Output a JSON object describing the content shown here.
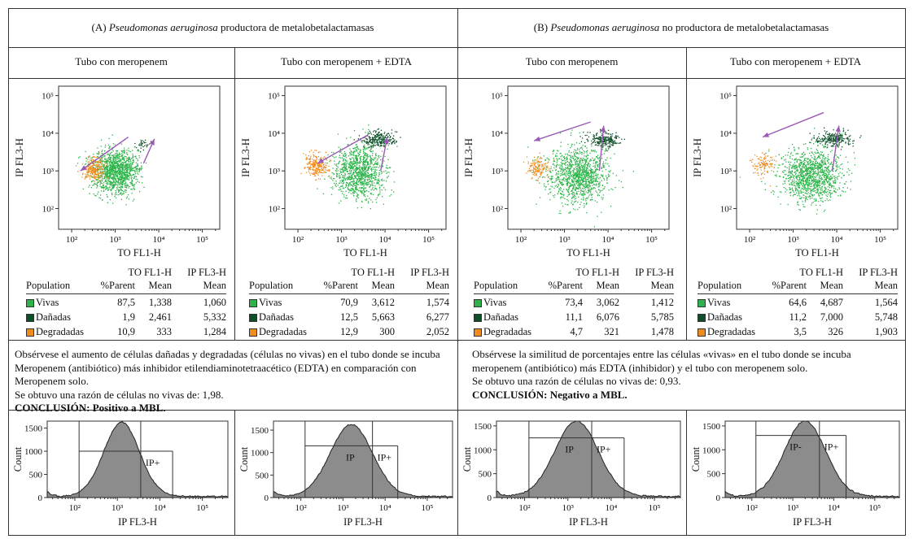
{
  "panels": [
    {
      "header_letter": "(A) ",
      "header_species": "Pseudomonas aeruginosa",
      "header_rest": " productora de metalobetalactamasas",
      "subheaders": [
        "Tubo con meropenem",
        "Tubo con meropenem + EDTA"
      ],
      "observation": [
        "Obsérvese el aumento de células dañadas y degradadas (células no vivas) en el tubo donde se incuba",
        "Meropenem (antibiótico) más inhibidor etilendiaminotetraacético (EDTA) en comparación con",
        "Meropenem solo.",
        "Se obtuvo una razón de células no vivas de: 1,98."
      ],
      "conclusion": "CONCLUSIÓN: Positivo a MBL."
    },
    {
      "header_letter": "(B) ",
      "header_species": "Pseudomonas aeruginosa",
      "header_rest": " no productora de metalobetalactamasas",
      "subheaders": [
        "Tubo con meropenem",
        "Tubo con meropenem + EDTA"
      ],
      "observation": [
        "Obsérvese la similitud de porcentajes entre las células «vivas» en el tubo donde se incuba",
        "meropenem (antibiótico) más EDTA (inhibidor) y el tubo con meropenem solo.",
        "Se obtuvo una razón de células no vivas de: 0,93."
      ],
      "conclusion": "CONCLUSIÓN: Negativo a MBL."
    }
  ],
  "stats_headers": {
    "col_to_top": "TO FL1-H",
    "col_ip_top": "IP FL3-H",
    "population": "Population",
    "parent": "%Parent",
    "mean1": "Mean",
    "mean2": "Mean"
  },
  "colors": {
    "vivas": "#2db34a",
    "danadas": "#0d4f28",
    "degradadas": "#f08c1e",
    "arrow": "#9b59b6",
    "hist": "#8c8c8c"
  },
  "chart_data": [
    {
      "type": "scatter",
      "id": "A1",
      "xlabel": "TO FL1-H",
      "ylabel": "IP FL3-H",
      "x_ticks": [
        "10²",
        "10³",
        "10⁴",
        "10⁵"
      ],
      "y_ticks": [
        "10⁵",
        "10⁴",
        "10³",
        "10²"
      ],
      "populations": [
        {
          "name": "Vivas",
          "parent": "87,5",
          "to_mean": "1,338",
          "ip_mean": "1,060"
        },
        {
          "name": "Dañadas",
          "parent": "1,9",
          "to_mean": "2,461",
          "ip_mean": "5,332"
        },
        {
          "name": "Degradadas",
          "parent": "10,9",
          "to_mean": "333",
          "ip_mean": "1,284"
        }
      ]
    },
    {
      "type": "scatter",
      "id": "A2",
      "xlabel": "TO FL1-H",
      "ylabel": "IP FL3-H",
      "x_ticks": [
        "10²",
        "10³",
        "10⁴",
        "10⁵"
      ],
      "y_ticks": [
        "10⁵",
        "10⁴",
        "10³",
        "10²"
      ],
      "populations": [
        {
          "name": "Vivas",
          "parent": "70,9",
          "to_mean": "3,612",
          "ip_mean": "1,574"
        },
        {
          "name": "Dañadas",
          "parent": "12,5",
          "to_mean": "5,663",
          "ip_mean": "6,277"
        },
        {
          "name": "Degradadas",
          "parent": "12,9",
          "to_mean": "300",
          "ip_mean": "2,052"
        }
      ]
    },
    {
      "type": "scatter",
      "id": "B1",
      "xlabel": "TO FL1-H",
      "ylabel": "IP FL3-H",
      "x_ticks": [
        "10²",
        "10³",
        "10⁴",
        "10⁵"
      ],
      "y_ticks": [
        "10⁵",
        "10⁴",
        "10³",
        "10²"
      ],
      "populations": [
        {
          "name": "Vivas",
          "parent": "73,4",
          "to_mean": "3,062",
          "ip_mean": "1,412"
        },
        {
          "name": "Dañadas",
          "parent": "11,1",
          "to_mean": "6,076",
          "ip_mean": "5,785"
        },
        {
          "name": "Degradadas",
          "parent": "4,7",
          "to_mean": "321",
          "ip_mean": "1,478"
        }
      ]
    },
    {
      "type": "scatter",
      "id": "B2",
      "xlabel": "TO FL1-H",
      "ylabel": "IP FL3-H",
      "x_ticks": [
        "10²",
        "10³",
        "10⁴",
        "10⁵"
      ],
      "y_ticks": [
        "10⁵",
        "10⁴",
        "10³",
        "10²"
      ],
      "populations": [
        {
          "name": "Vivas",
          "parent": "64,6",
          "to_mean": "4,687",
          "ip_mean": "1,564"
        },
        {
          "name": "Dañadas",
          "parent": "11,2",
          "to_mean": "7,000",
          "ip_mean": "5,748"
        },
        {
          "name": "Degradadas",
          "parent": "3,5",
          "to_mean": "326",
          "ip_mean": "1,903"
        }
      ]
    },
    {
      "type": "area",
      "id": "HA1",
      "xlabel": "IP FL3-H",
      "ylabel": "Count",
      "y_ticks": [
        0,
        500,
        1000,
        1500
      ],
      "ylim": [
        0,
        1650
      ],
      "x_ticks": [
        "10²",
        "10³",
        "10⁴",
        "10⁵"
      ],
      "xlim_log": [
        1.35,
        5.6
      ],
      "gate_label": "IP+",
      "neg_label": "",
      "peak_log": 3.1,
      "peak_count": 1600,
      "width": 0.42,
      "gate_start_log": 3.55,
      "gate_top": 1000
    },
    {
      "type": "area",
      "id": "HA2",
      "xlabel": "IP FL3-H",
      "ylabel": "Count",
      "y_ticks": [
        0,
        500,
        1000,
        1500
      ],
      "ylim": [
        0,
        1700
      ],
      "x_ticks": [
        "10²",
        "10³",
        "10⁴",
        "10⁵"
      ],
      "xlim_log": [
        1.35,
        5.6
      ],
      "gate_label": "IP+",
      "neg_label": "IP",
      "peak_log": 3.2,
      "peak_count": 1600,
      "width": 0.5,
      "gate_start_log": 3.7,
      "gate_top": 1150
    },
    {
      "type": "area",
      "id": "HB1",
      "xlabel": "IP FL3-H",
      "ylabel": "Count",
      "y_ticks": [
        0,
        500,
        1000,
        1500
      ],
      "ylim": [
        0,
        1600
      ],
      "x_ticks": [
        "10²",
        "10³",
        "10⁴",
        "10⁵"
      ],
      "xlim_log": [
        1.35,
        5.6
      ],
      "gate_label": "IP+",
      "neg_label": "IP",
      "peak_log": 3.2,
      "peak_count": 1580,
      "width": 0.5,
      "gate_start_log": 3.55,
      "gate_top": 1250
    },
    {
      "type": "area",
      "id": "HB2",
      "xlabel": "IP FL3-H",
      "ylabel": "Count",
      "y_ticks": [
        0,
        500,
        1000,
        1500
      ],
      "ylim": [
        0,
        1600
      ],
      "x_ticks": [
        "10²",
        "10³",
        "10⁴",
        "10⁵"
      ],
      "xlim_log": [
        1.35,
        5.6
      ],
      "gate_label": "IP+",
      "neg_label": "IP-",
      "peak_log": 3.3,
      "peak_count": 1580,
      "width": 0.5,
      "gate_start_log": 3.65,
      "gate_top": 1300
    }
  ]
}
